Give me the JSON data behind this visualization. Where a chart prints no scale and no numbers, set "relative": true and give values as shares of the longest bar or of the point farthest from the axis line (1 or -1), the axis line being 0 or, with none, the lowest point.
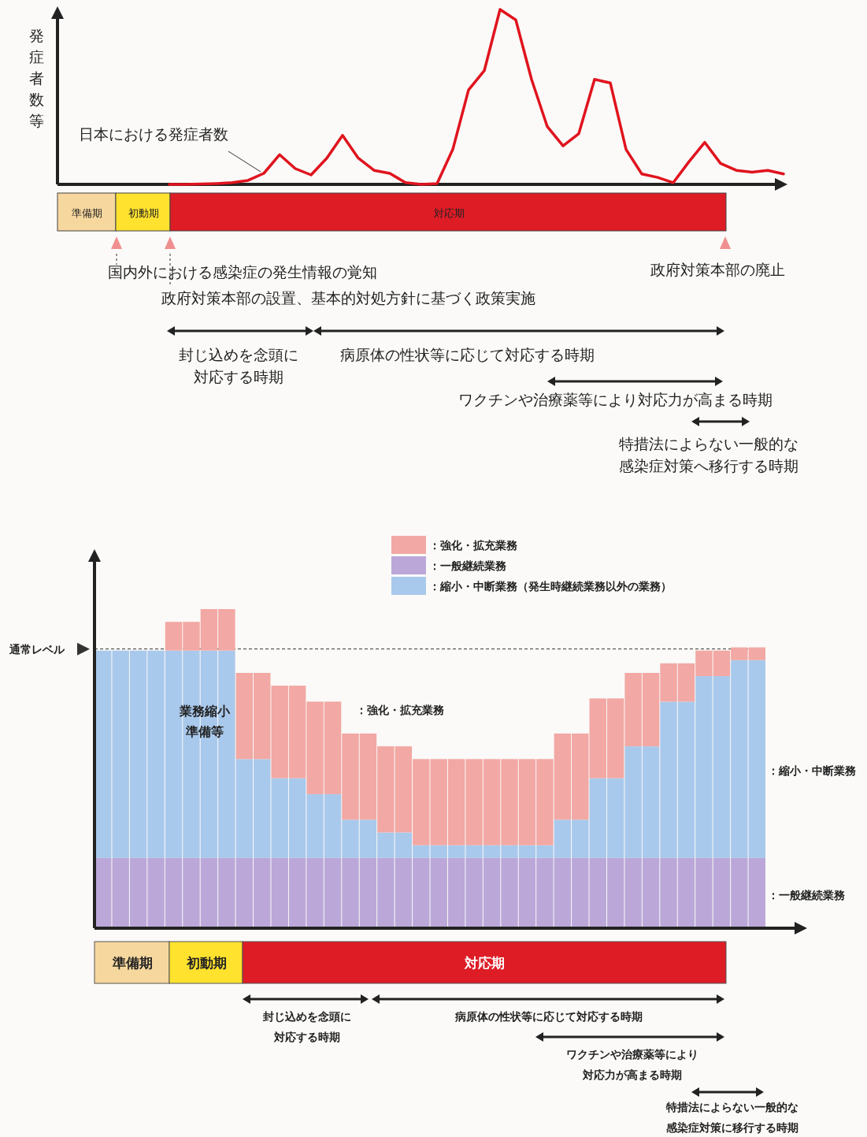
{
  "chart_data": [
    {
      "type": "line",
      "relative": true,
      "ylabel": "発症者数等",
      "categories": [
        null,
        null,
        null,
        null,
        null,
        null,
        null,
        null,
        null,
        null,
        null,
        null,
        null,
        null,
        null,
        null,
        null,
        null,
        null,
        null,
        null,
        null,
        null,
        null,
        null,
        null,
        null,
        null,
        null,
        null,
        null,
        null,
        null,
        null,
        null,
        null,
        null,
        null,
        null,
        null
      ],
      "series": [
        {
          "name": "日本における発症者数",
          "color": "#e0141e",
          "values": [
            0,
            0,
            0.002,
            0.005,
            0.01,
            0.023,
            0.063,
            0.17,
            0.09,
            0.054,
            0.15,
            0.28,
            0.15,
            0.08,
            0.063,
            0.01,
            0,
            0.005,
            0.2,
            0.54,
            0.65,
            1.0,
            0.94,
            0.6,
            0.33,
            0.22,
            0.29,
            0.6,
            0.58,
            0.2,
            0.06,
            0.04,
            0.01,
            0.13,
            0.24,
            0.12,
            0.08,
            0.07,
            0.08,
            0.06
          ]
        }
      ],
      "annotations": [
        "準備期",
        "初動期",
        "対応期",
        "国内外における感染症の発生情報の覚知",
        "政府対策本部の設置、基本的対処方針に基づく政策実施",
        "政府対策本部の廃止",
        "封じ込めを念頭に対応する時期",
        "病原体の性状等に応じて対応する時期",
        "ワクチンや治療薬等により対応力が高まる時期",
        "特措法によらない一般的な感染症対策へ移行する時期"
      ]
    },
    {
      "type": "bar",
      "relative": true,
      "stacked": true,
      "legend": "top",
      "categories": [
        null,
        null,
        null,
        null,
        null,
        null,
        null,
        null,
        null,
        null,
        null,
        null,
        null,
        null,
        null,
        null,
        null,
        null,
        null,
        null,
        null,
        null,
        null,
        null,
        null,
        null,
        null,
        null,
        null,
        null,
        null,
        null,
        null,
        null,
        null,
        null,
        null,
        null
      ],
      "series": [
        {
          "name": "：一般継続業務",
          "color": "#bba8d8",
          "values": [
            0.22,
            0.22,
            0.22,
            0.22,
            0.22,
            0.22,
            0.22,
            0.22,
            0.22,
            0.22,
            0.22,
            0.22,
            0.22,
            0.22,
            0.22,
            0.22,
            0.22,
            0.22,
            0.22,
            0.22,
            0.22,
            0.22,
            0.22,
            0.22,
            0.22,
            0.22,
            0.22,
            0.22,
            0.22,
            0.22,
            0.22,
            0.22,
            0.22,
            0.22,
            0.22,
            0.22,
            0.22,
            0.22
          ]
        },
        {
          "name": "：縮小・中断業務（発生時継続業務以外の業務）",
          "color": "#a9c9ec",
          "values": [
            0.65,
            0.65,
            0.65,
            0.65,
            0.65,
            0.65,
            0.65,
            0.65,
            0.31,
            0.31,
            0.25,
            0.25,
            0.2,
            0.2,
            0.12,
            0.12,
            0.08,
            0.08,
            0.04,
            0.04,
            0.04,
            0.04,
            0.04,
            0.04,
            0.04,
            0.04,
            0.12,
            0.12,
            0.25,
            0.25,
            0.35,
            0.35,
            0.49,
            0.49,
            0.57,
            0.57,
            0.62,
            0.62
          ]
        },
        {
          "name": "：強化・拡充業務",
          "color": "#f2a8a4",
          "values": [
            0,
            0,
            0,
            0,
            0.09,
            0.09,
            0.13,
            0.13,
            0.27,
            0.27,
            0.29,
            0.29,
            0.29,
            0.29,
            0.27,
            0.27,
            0.27,
            0.27,
            0.27,
            0.27,
            0.27,
            0.27,
            0.27,
            0.27,
            0.27,
            0.27,
            0.27,
            0.27,
            0.25,
            0.25,
            0.23,
            0.23,
            0.12,
            0.12,
            0.08,
            0.08,
            0.04,
            0.04
          ]
        }
      ],
      "ref_lines": [
        {
          "axis": "y",
          "value": 0.875,
          "label": "通常レベル",
          "line_style": "dashed"
        }
      ],
      "annotations": [
        "業務縮小準備等",
        "：強化・拡充業務",
        "：縮小・中断業務",
        "：一般継続業務",
        "準備期",
        "初動期",
        "対応期",
        "封じ込めを念頭に対応する時期",
        "病原体の性状等に応じて対応する時期",
        "ワクチンや治療薬等により対応力が高まる時期",
        "特措法によらない一般的な感染症対策に移行する時期"
      ]
    }
  ]
}
